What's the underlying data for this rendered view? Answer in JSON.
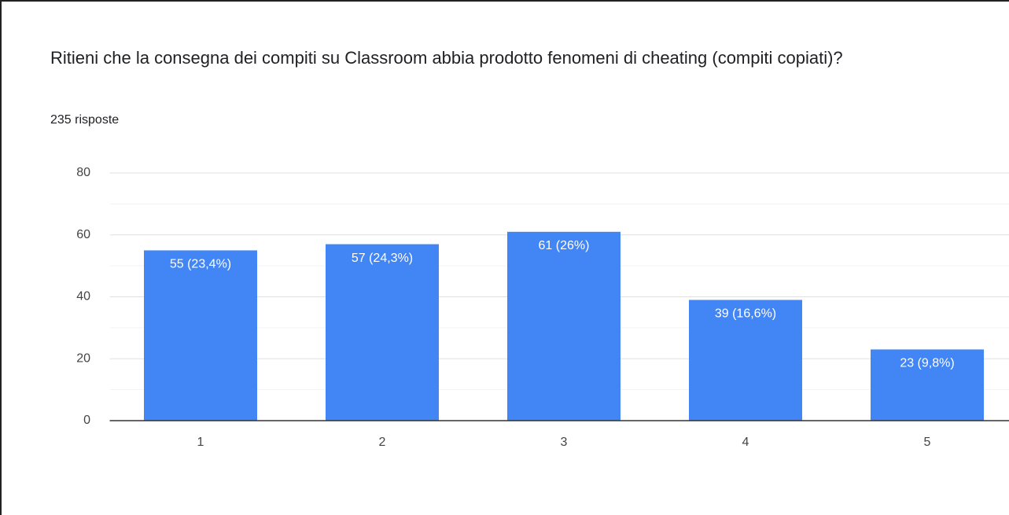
{
  "chart_data": {
    "type": "bar",
    "title": "Ritieni che la consegna dei compiti su Classroom abbia prodotto fenomeni di cheating (compiti copiati)?",
    "subtitle": "235 risposte",
    "categories": [
      "1",
      "2",
      "3",
      "4",
      "5"
    ],
    "values": [
      55,
      57,
      61,
      39,
      23
    ],
    "value_labels": [
      "55 (23,4%)",
      "57 (24,3%)",
      "61 (26%)",
      "39 (16,6%)",
      "23 (9,8%)"
    ],
    "color": "#4285f4",
    "ylim": [
      0,
      80
    ],
    "yticks": [
      0,
      20,
      40,
      60,
      80
    ],
    "minor_yticks": [
      10,
      30,
      50,
      70
    ],
    "grid": true
  }
}
